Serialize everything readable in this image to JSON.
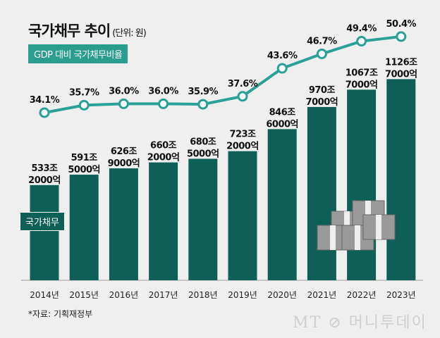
{
  "title": "국가채무 추이",
  "unit": "(단위: 원)",
  "source": "*자료: 기획재정부",
  "logo": "MT 머니투데이",
  "colors": {
    "bar": "#0e5f55",
    "line": "#2aa096",
    "background": "#efefef"
  },
  "chart_data": {
    "type": "bar+line",
    "categories": [
      "2014년",
      "2015년",
      "2016년",
      "2017년",
      "2018년",
      "2019년",
      "2020년",
      "2021년",
      "2022년",
      "2023년"
    ],
    "series": [
      {
        "name": "국가채무",
        "type": "bar",
        "unit": "조원",
        "values": [
          533.2,
          591.5,
          626.9,
          660.2,
          680.5,
          723.2,
          846.6,
          970.7,
          1067.7,
          1126.7
        ],
        "labels": [
          [
            "533조",
            "2000억"
          ],
          [
            "591조",
            "5000억"
          ],
          [
            "626조",
            "9000억"
          ],
          [
            "660조",
            "2000억"
          ],
          [
            "680조",
            "5000억"
          ],
          [
            "723조",
            "2000억"
          ],
          [
            "846조",
            "6000억"
          ],
          [
            "970조",
            "7000억"
          ],
          [
            "1067조",
            "7000억"
          ],
          [
            "1126조",
            "7000억"
          ]
        ]
      },
      {
        "name": "GDP 대비 국가채무비율",
        "type": "line",
        "unit": "%",
        "values": [
          34.1,
          35.7,
          36.0,
          36.0,
          35.9,
          37.6,
          43.6,
          46.7,
          49.4,
          50.4
        ],
        "labels": [
          "34.1%",
          "35.7%",
          "36.0%",
          "36.0%",
          "35.9%",
          "37.6%",
          "43.6%",
          "46.7%",
          "49.4%",
          "50.4%"
        ]
      }
    ]
  }
}
